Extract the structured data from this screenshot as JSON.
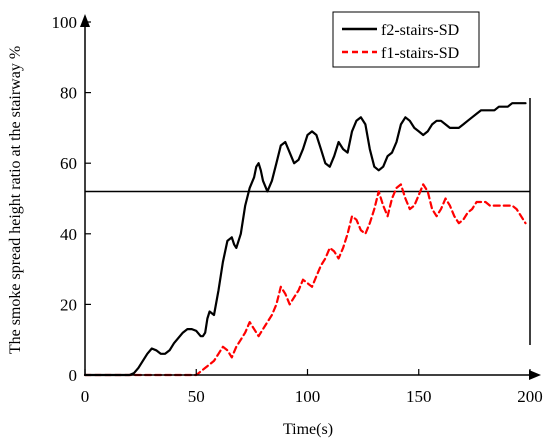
{
  "chart_data": {
    "type": "line",
    "xlabel": "Time(s)",
    "ylabel": "The smoke spread height ratio at the stairway %",
    "xlim": [
      0,
      200
    ],
    "ylim": [
      0,
      100
    ],
    "x_ticks": [
      "0",
      "50",
      "100",
      "150",
      "200"
    ],
    "y_ticks": [
      "0",
      "20",
      "40",
      "60",
      "80",
      "100"
    ],
    "legend_position": "top-right",
    "reference_line": {
      "y": 52,
      "color": "#000000"
    },
    "series": [
      {
        "name": "f2-stairs-SD",
        "color": "#000000",
        "dash": "solid",
        "x": [
          0,
          10,
          20,
          22,
          24,
          26,
          28,
          30,
          32,
          34,
          36,
          38,
          40,
          42,
          44,
          46,
          48,
          50,
          52,
          53,
          54,
          55,
          56,
          58,
          60,
          62,
          64,
          66,
          67,
          68,
          70,
          72,
          74,
          76,
          77,
          78,
          79,
          80,
          82,
          84,
          86,
          88,
          90,
          92,
          94,
          96,
          98,
          100,
          102,
          104,
          106,
          108,
          110,
          112,
          114,
          116,
          118,
          120,
          122,
          124,
          126,
          128,
          130,
          132,
          134,
          136,
          138,
          140,
          142,
          144,
          146,
          148,
          150,
          152,
          154,
          156,
          158,
          160,
          162,
          164,
          166,
          168,
          170,
          172,
          174,
          176,
          178,
          180,
          182,
          184,
          186,
          188,
          190,
          192,
          194,
          196,
          198
        ],
        "y": [
          0,
          0,
          0,
          0.5,
          2,
          4,
          6,
          7.5,
          7,
          6,
          6,
          7,
          9,
          10.5,
          12,
          13,
          13,
          12.5,
          11,
          11,
          12,
          16,
          18,
          17,
          24,
          32,
          38,
          39,
          37,
          36,
          40,
          48,
          53,
          56,
          59,
          60,
          58,
          55,
          52,
          55,
          60,
          65,
          66,
          63,
          60,
          61,
          64,
          68,
          69,
          68,
          64,
          60,
          59,
          62,
          66,
          64,
          63,
          69,
          72,
          73,
          71,
          64,
          59,
          58,
          59,
          62,
          63,
          66,
          71,
          73,
          72,
          70,
          69,
          68,
          69,
          71,
          72,
          72,
          71,
          70,
          70,
          70,
          71,
          72,
          73,
          74,
          75,
          75,
          75,
          75,
          76,
          76,
          76,
          77,
          77,
          77,
          77
        ]
      },
      {
        "name": "f1-stairs-SD",
        "color": "#ff0000",
        "dash": "dashed",
        "x": [
          0,
          10,
          20,
          30,
          40,
          50,
          52,
          54,
          56,
          58,
          60,
          62,
          64,
          66,
          68,
          70,
          72,
          74,
          76,
          78,
          80,
          82,
          84,
          86,
          88,
          90,
          92,
          94,
          96,
          98,
          100,
          102,
          104,
          106,
          108,
          110,
          112,
          114,
          116,
          118,
          120,
          122,
          124,
          126,
          128,
          130,
          132,
          134,
          136,
          138,
          140,
          142,
          144,
          146,
          148,
          150,
          152,
          154,
          156,
          158,
          160,
          162,
          164,
          166,
          168,
          170,
          172,
          174,
          176,
          178,
          180,
          182,
          184,
          186,
          188,
          190,
          192,
          194,
          196,
          198
        ],
        "y": [
          0,
          0,
          0,
          0,
          0,
          0,
          1,
          2,
          3,
          4,
          6,
          8,
          7,
          5,
          8,
          10,
          12,
          15,
          13,
          11,
          13,
          15,
          17,
          20,
          25,
          23,
          20,
          22,
          24,
          27,
          26,
          25,
          28,
          31,
          33,
          36,
          35,
          33,
          36,
          40,
          45,
          44,
          41,
          40,
          43,
          47,
          52,
          48,
          45,
          50,
          53,
          54,
          50,
          47,
          48,
          51,
          54,
          52,
          47,
          45,
          47,
          50,
          48,
          45,
          43,
          44,
          46,
          47,
          49,
          49,
          49,
          48,
          48,
          48,
          48,
          48,
          48,
          47,
          45,
          43
        ]
      }
    ]
  }
}
